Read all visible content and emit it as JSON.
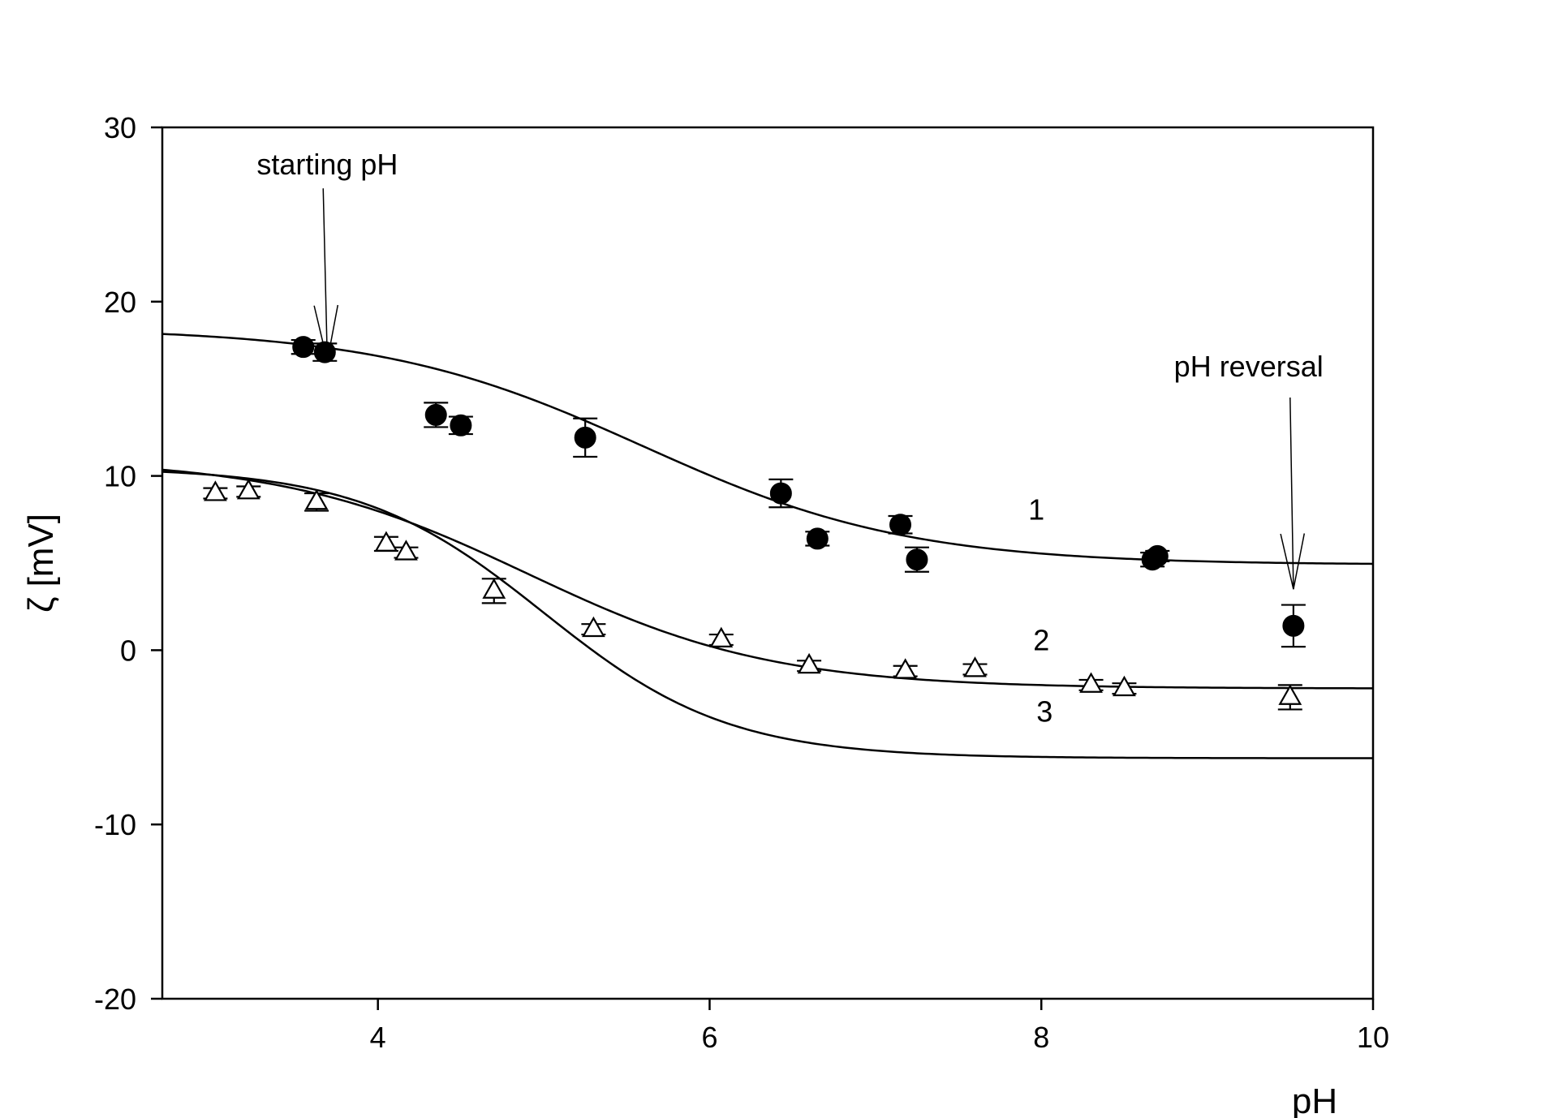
{
  "chart_data": {
    "type": "scatter",
    "title": "",
    "xlabel": "pH",
    "ylabel": "ζ [mV]",
    "xlim": [
      2.7,
      10
    ],
    "ylim": [
      -20,
      30
    ],
    "xticks": [
      4,
      6,
      8,
      10
    ],
    "yticks": [
      30,
      20,
      10,
      0,
      -10,
      -20
    ],
    "xtick_labels": [
      "4",
      "6",
      "8",
      "10"
    ],
    "ytick_labels": [
      "30",
      "20",
      "10",
      "0",
      "-10",
      "-20"
    ],
    "grid": false,
    "legend": "none",
    "series": [
      {
        "marker": "filled-circle",
        "points": [
          {
            "x": 3.55,
            "y": 17.4,
            "err": 0.4
          },
          {
            "x": 3.68,
            "y": 17.1,
            "err": 0.5
          },
          {
            "x": 4.35,
            "y": 13.5,
            "err": 0.7
          },
          {
            "x": 4.5,
            "y": 12.9,
            "err": 0.5
          },
          {
            "x": 5.25,
            "y": 12.2,
            "err": 1.1
          },
          {
            "x": 6.43,
            "y": 9.0,
            "err": 0.8
          },
          {
            "x": 6.65,
            "y": 6.4,
            "err": 0.4
          },
          {
            "x": 7.15,
            "y": 7.2,
            "err": 0.5
          },
          {
            "x": 7.25,
            "y": 5.2,
            "err": 0.7
          },
          {
            "x": 8.67,
            "y": 5.2,
            "err": 0.4
          },
          {
            "x": 8.7,
            "y": 5.4,
            "err": 0.3
          },
          {
            "x": 9.52,
            "y": 1.4,
            "err": 1.2
          }
        ]
      },
      {
        "marker": "open-triangle",
        "points": [
          {
            "x": 3.02,
            "y": 9.0,
            "err": 0.3
          },
          {
            "x": 3.22,
            "y": 9.1,
            "err": 0.3
          },
          {
            "x": 3.63,
            "y": 8.5,
            "err": 0.5
          },
          {
            "x": 4.05,
            "y": 6.1,
            "err": 0.4
          },
          {
            "x": 4.17,
            "y": 5.6,
            "err": 0.3
          },
          {
            "x": 4.7,
            "y": 3.4,
            "err": 0.7
          },
          {
            "x": 5.3,
            "y": 1.2,
            "err": 0.3
          },
          {
            "x": 6.07,
            "y": 0.6,
            "err": 0.3
          },
          {
            "x": 6.6,
            "y": -0.9,
            "err": 0.3
          },
          {
            "x": 7.18,
            "y": -1.2,
            "err": 0.3
          },
          {
            "x": 7.6,
            "y": -1.1,
            "err": 0.3
          },
          {
            "x": 8.3,
            "y": -2.0,
            "err": 0.3
          },
          {
            "x": 8.5,
            "y": -2.2,
            "err": 0.3
          },
          {
            "x": 9.5,
            "y": -2.7,
            "err": 0.7
          }
        ]
      }
    ],
    "curves": [
      {
        "label": "1",
        "label_at": {
          "x": 7.97,
          "y": 7.5
        },
        "high": 18.5,
        "low": 4.9,
        "mid": 5.6,
        "slope": 1.25
      },
      {
        "label": "2",
        "label_at": {
          "x": 8.0,
          "y": 0.0
        },
        "high": 11.0,
        "low": -2.2,
        "mid": 4.9,
        "slope": 1.35
      },
      {
        "label": "3",
        "label_at": {
          "x": 8.02,
          "y": -4.1
        },
        "high": 10.5,
        "low": -6.2,
        "mid": 5.0,
        "slope": 1.8
      }
    ],
    "annotations": [
      {
        "text": "starting pH",
        "text_at": {
          "x": 3.695,
          "y": 27.3
        },
        "arrow_from": {
          "x": 3.67,
          "y": 26.5
        },
        "arrow_to": {
          "x": 3.695,
          "y": 16.6
        }
      },
      {
        "text": "pH reversal",
        "text_at": {
          "x": 9.25,
          "y": 15.7
        },
        "arrow_from": {
          "x": 9.5,
          "y": 14.5
        },
        "arrow_to": {
          "x": 9.52,
          "y": 3.5
        }
      }
    ]
  }
}
